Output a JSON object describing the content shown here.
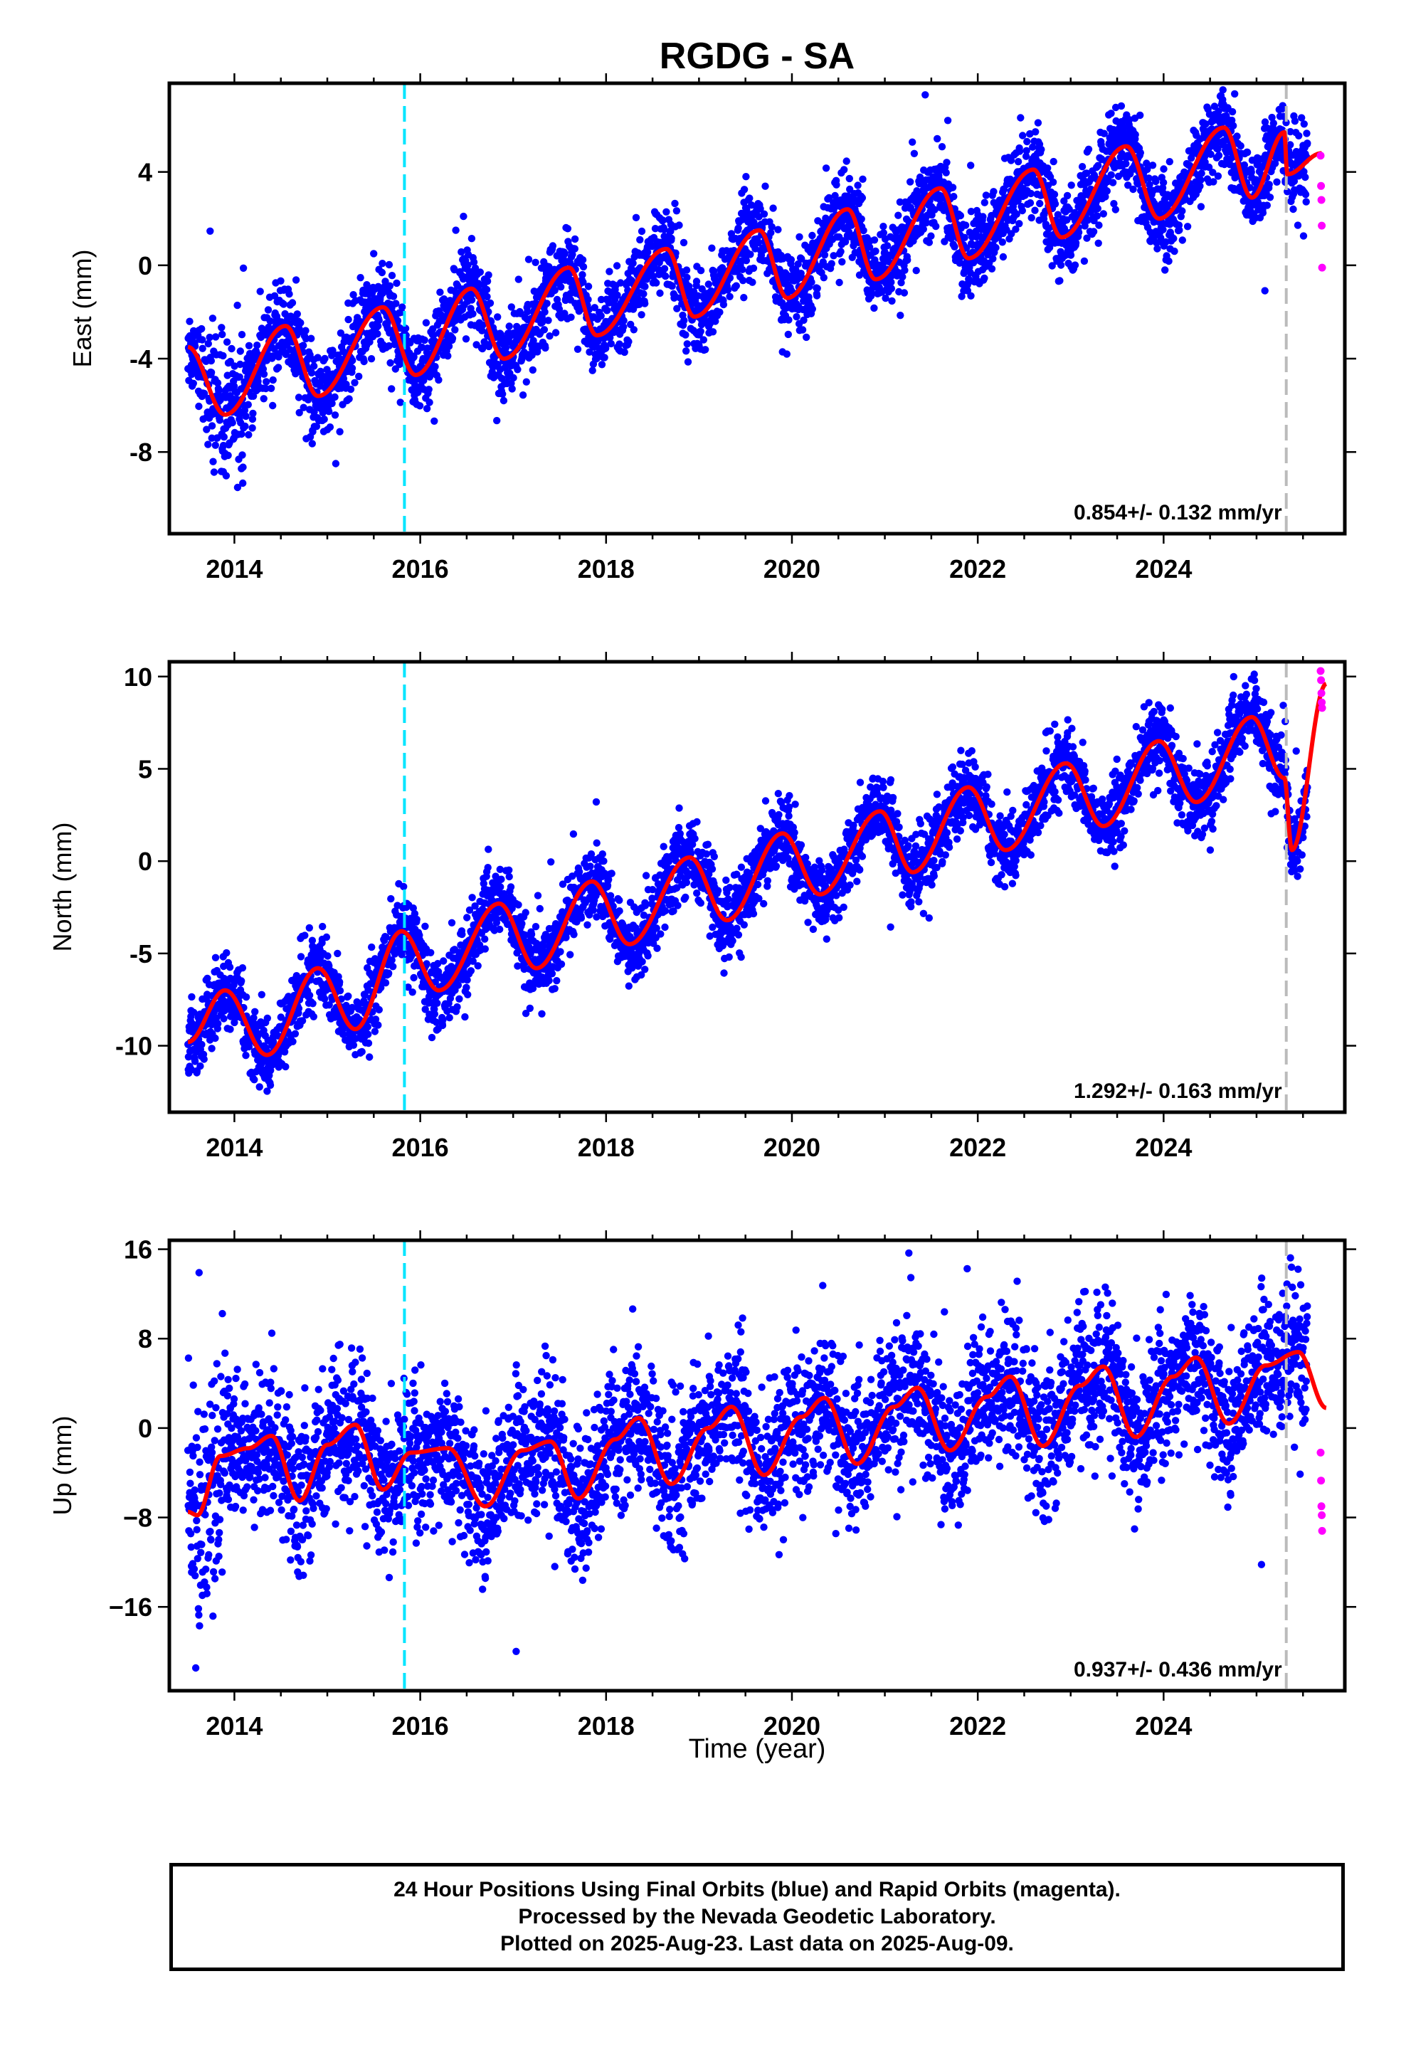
{
  "chart_data": {
    "title": "RGDG - SA",
    "type": "scatter",
    "xlabel": "Time (year)",
    "xlim": [
      2013.3,
      2025.95
    ],
    "xticks": [
      2014,
      2016,
      2018,
      2020,
      2022,
      2024
    ],
    "event_line_cyan_year": 2015.83,
    "event_line_gray_year": 2025.32,
    "rapid_start_year": 2025.55,
    "colors": {
      "final": "#0000ff",
      "rapid": "#ff00ff",
      "model": "#ff0000",
      "event": "#00e5ff",
      "gray": "#bbbbbb"
    },
    "panels": [
      {
        "ylabel": "East (mm)",
        "ylim": [
          -11.5,
          7.8
        ],
        "yticks": [
          -8,
          -4,
          0,
          4
        ],
        "ytick_labels": [
          "-8",
          "-4",
          "0",
          "4"
        ],
        "rate_label": "0.854+/- 0.132 mm/yr",
        "model": {
          "intercept": -5.2,
          "rate": 0.854,
          "seasonal_amp": 1.9,
          "phase_year": 2013.55,
          "anchors": [
            [
              2013.5,
              -3.5
            ],
            [
              2013.9,
              -6.4
            ],
            [
              2014.55,
              -2.6
            ],
            [
              2014.9,
              -5.6
            ],
            [
              2015.6,
              -1.8
            ],
            [
              2015.95,
              -4.7
            ],
            [
              2016.55,
              -1.0
            ],
            [
              2016.9,
              -4.0
            ],
            [
              2017.6,
              -0.1
            ],
            [
              2017.9,
              -3.0
            ],
            [
              2018.65,
              0.7
            ],
            [
              2018.95,
              -2.2
            ],
            [
              2019.65,
              1.5
            ],
            [
              2019.95,
              -1.4
            ],
            [
              2020.6,
              2.4
            ],
            [
              2020.9,
              -0.6
            ],
            [
              2021.6,
              3.3
            ],
            [
              2021.9,
              0.3
            ],
            [
              2022.6,
              4.1
            ],
            [
              2022.9,
              1.2
            ],
            [
              2023.6,
              5.1
            ],
            [
              2023.95,
              2.0
            ],
            [
              2024.65,
              5.9
            ],
            [
              2024.95,
              2.9
            ],
            [
              2025.3,
              5.7
            ],
            [
              2025.33,
              3.9
            ],
            [
              2025.7,
              4.8
            ]
          ]
        },
        "scatter_sigma": 0.9,
        "rapid_values": [
          4.7,
          3.4,
          2.8,
          1.7,
          -0.1
        ]
      },
      {
        "ylabel": "North (mm)",
        "ylim": [
          -13.6,
          10.8
        ],
        "yticks": [
          -10,
          -5,
          0,
          5,
          10
        ],
        "ytick_labels": [
          "-10",
          "-5",
          "0",
          "5",
          "10"
        ],
        "rate_label": "1.292+/- 0.163 mm/yr",
        "model": {
          "anchors": [
            [
              2013.5,
              -9.8
            ],
            [
              2013.9,
              -7.0
            ],
            [
              2014.35,
              -10.5
            ],
            [
              2014.9,
              -5.8
            ],
            [
              2015.3,
              -9.1
            ],
            [
              2015.8,
              -3.8
            ],
            [
              2016.2,
              -7.0
            ],
            [
              2016.85,
              -2.3
            ],
            [
              2017.25,
              -5.8
            ],
            [
              2017.85,
              -1.1
            ],
            [
              2018.25,
              -4.5
            ],
            [
              2018.9,
              0.2
            ],
            [
              2019.3,
              -3.2
            ],
            [
              2019.9,
              1.5
            ],
            [
              2020.3,
              -1.8
            ],
            [
              2020.95,
              2.7
            ],
            [
              2021.3,
              -0.6
            ],
            [
              2021.9,
              4.0
            ],
            [
              2022.3,
              0.6
            ],
            [
              2022.95,
              5.3
            ],
            [
              2023.35,
              1.9
            ],
            [
              2023.95,
              6.5
            ],
            [
              2024.35,
              3.2
            ],
            [
              2024.95,
              7.8
            ],
            [
              2025.3,
              4.5
            ],
            [
              2025.38,
              0.6
            ],
            [
              2025.75,
              9.6
            ]
          ]
        },
        "scatter_sigma": 1.0,
        "rapid_values": [
          10.3,
          9.8,
          9.1,
          8.6,
          8.3
        ]
      },
      {
        "ylabel": "Up (mm)",
        "ylim": [
          -23.5,
          16.8
        ],
        "yticks": [
          -16,
          -8,
          0,
          8,
          16
        ],
        "ytick_labels": [
          "−16",
          "−8",
          "0",
          "8",
          "16"
        ],
        "rate_label": "0.937+/- 0.436 mm/yr",
        "model": {
          "anchors": [
            [
              2013.5,
              -7.5
            ],
            [
              2013.6,
              -7.8
            ],
            [
              2013.85,
              -2.5
            ],
            [
              2014.15,
              -1.8
            ],
            [
              2014.4,
              -0.7
            ],
            [
              2014.7,
              -6.5
            ],
            [
              2015.0,
              -1.5
            ],
            [
              2015.3,
              0.3
            ],
            [
              2015.6,
              -5.5
            ],
            [
              2015.9,
              -2.2
            ],
            [
              2016.3,
              -1.8
            ],
            [
              2016.7,
              -7.0
            ],
            [
              2017.1,
              -2.0
            ],
            [
              2017.4,
              -1.2
            ],
            [
              2017.7,
              -6.3
            ],
            [
              2018.1,
              -1.0
            ],
            [
              2018.35,
              0.9
            ],
            [
              2018.7,
              -5.0
            ],
            [
              2019.1,
              0.0
            ],
            [
              2019.35,
              1.9
            ],
            [
              2019.7,
              -4.2
            ],
            [
              2020.1,
              1.0
            ],
            [
              2020.35,
              2.7
            ],
            [
              2020.7,
              -3.2
            ],
            [
              2021.1,
              1.9
            ],
            [
              2021.35,
              3.6
            ],
            [
              2021.7,
              -2.0
            ],
            [
              2022.1,
              2.8
            ],
            [
              2022.35,
              4.6
            ],
            [
              2022.7,
              -1.6
            ],
            [
              2023.1,
              3.8
            ],
            [
              2023.35,
              5.5
            ],
            [
              2023.7,
              -0.8
            ],
            [
              2024.1,
              4.6
            ],
            [
              2024.35,
              6.3
            ],
            [
              2024.7,
              0.4
            ],
            [
              2025.1,
              5.6
            ],
            [
              2025.45,
              6.8
            ],
            [
              2025.75,
              1.8
            ]
          ]
        },
        "scatter_sigma": 3.2,
        "rapid_values": [
          -2.2,
          -4.7,
          -7.0,
          -7.8,
          -9.2
        ]
      }
    ]
  },
  "footer": {
    "line1": "24 Hour Positions Using Final Orbits (blue) and Rapid Orbits (magenta).",
    "line2": "Processed by the Nevada Geodetic Laboratory.",
    "line3": "Plotted on 2025-Aug-23. Last data on 2025-Aug-09."
  }
}
